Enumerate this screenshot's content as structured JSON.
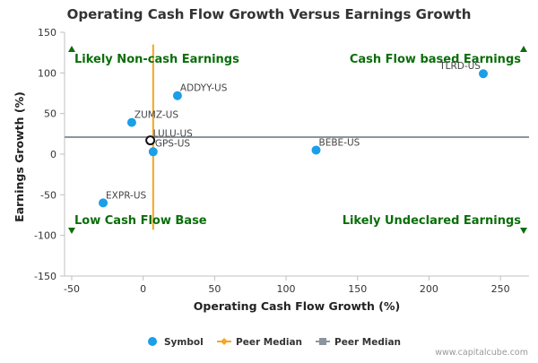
{
  "chart_data": {
    "type": "scatter",
    "title": "Operating Cash Flow Growth Versus Earnings Growth",
    "xlabel": "Operating Cash Flow Growth (%)",
    "ylabel": "Earnings Growth (%)",
    "xlim": [
      -55,
      270
    ],
    "ylim": [
      -150,
      150
    ],
    "xticks": [
      "-50",
      "0",
      "50",
      "100",
      "150",
      "200",
      "250"
    ],
    "xtick_values": [
      -50,
      0,
      50,
      100,
      150,
      200,
      250
    ],
    "yticks": [
      "150",
      "100",
      "50",
      "0",
      "-50",
      "-100",
      "-150"
    ],
    "ytick_values": [
      150,
      100,
      50,
      0,
      -50,
      -100,
      -150
    ],
    "grid": false,
    "points": [
      {
        "label": "TLRD-US",
        "x": 238,
        "y": 99
      },
      {
        "label": "ADDYY-US",
        "x": 24,
        "y": 72
      },
      {
        "label": "ZUMZ-US",
        "x": -8,
        "y": 39
      },
      {
        "label": "GPS-US",
        "x": 7,
        "y": 3
      },
      {
        "label": "BEBE-US",
        "x": 121,
        "y": 5
      },
      {
        "label": "EXPR-US",
        "x": -28,
        "y": -60
      }
    ],
    "highlight": {
      "label": "LULU-US",
      "x": 5,
      "y": 17
    },
    "peer_median_x": 7,
    "peer_median_y": 21,
    "quadrants": {
      "top_left": "Likely Non-cash Earnings",
      "top_right": "Cash Flow based Earnings",
      "bottom_left": "Low Cash Flow Base",
      "bottom_right": "Likely Undeclared Earnings"
    },
    "legend": [
      {
        "name": "Symbol",
        "color": "#1a9fe8",
        "marker": "circle"
      },
      {
        "name": "Peer Median",
        "color": "#f5a623",
        "marker": "diamond"
      },
      {
        "name": "Peer Median",
        "color": "#8c959c",
        "marker": "square"
      }
    ],
    "legend_position": "bottom-center",
    "colors": {
      "point": "#1a9fe8",
      "median_x_line": "#f5a623",
      "median_y_line": "#8c959c",
      "quadrant_text": "#0a6e0a",
      "arrow": "#0a6e0a"
    },
    "credit": "www.capitalcube.com"
  }
}
